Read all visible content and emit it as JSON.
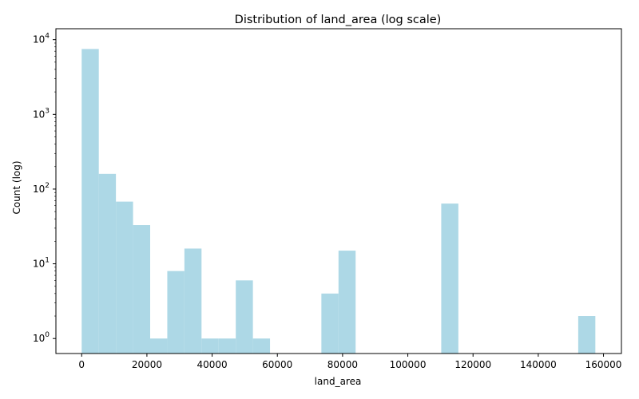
{
  "chart_data": {
    "type": "bar",
    "title": "Distribution of land_area (log scale)",
    "xlabel": "land_area",
    "ylabel": "Count (log)",
    "x_ticks": [
      0,
      20000,
      40000,
      60000,
      80000,
      100000,
      120000,
      140000,
      160000
    ],
    "y_scale": "log",
    "y_ticks": [
      {
        "value": 1,
        "base": "10",
        "exp": "0"
      },
      {
        "value": 10,
        "base": "10",
        "exp": "1"
      },
      {
        "value": 100,
        "base": "10",
        "exp": "2"
      },
      {
        "value": 1000,
        "base": "10",
        "exp": "3"
      },
      {
        "value": 10000,
        "base": "10",
        "exp": "4"
      }
    ],
    "xlim": [
      -7900,
      165500
    ],
    "ylim": [
      0.63,
      14000
    ],
    "bar_color": "#add8e6",
    "grid": false,
    "bins": [
      {
        "x0": 0,
        "x1": 5250,
        "count": 7500
      },
      {
        "x0": 5250,
        "x1": 10500,
        "count": 160
      },
      {
        "x0": 10500,
        "x1": 15750,
        "count": 68
      },
      {
        "x0": 15750,
        "x1": 21000,
        "count": 33
      },
      {
        "x0": 21000,
        "x1": 26250,
        "count": 1
      },
      {
        "x0": 26250,
        "x1": 31500,
        "count": 8
      },
      {
        "x0": 31500,
        "x1": 36750,
        "count": 16
      },
      {
        "x0": 36750,
        "x1": 42000,
        "count": 1
      },
      {
        "x0": 42000,
        "x1": 47250,
        "count": 1
      },
      {
        "x0": 47250,
        "x1": 52500,
        "count": 6
      },
      {
        "x0": 52500,
        "x1": 57750,
        "count": 1
      },
      {
        "x0": 73500,
        "x1": 78750,
        "count": 4
      },
      {
        "x0": 78750,
        "x1": 84000,
        "count": 15
      },
      {
        "x0": 110250,
        "x1": 115500,
        "count": 64
      },
      {
        "x0": 152250,
        "x1": 157500,
        "count": 2
      }
    ]
  }
}
